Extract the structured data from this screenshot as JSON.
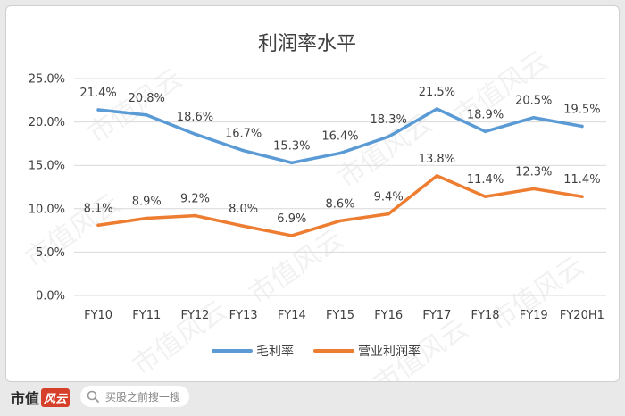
{
  "chart_data": {
    "type": "line",
    "title": "利润率水平",
    "categories": [
      "FY10",
      "FY11",
      "FY12",
      "FY13",
      "FY14",
      "FY15",
      "FY16",
      "FY17",
      "FY18",
      "FY19",
      "FY20H1"
    ],
    "y_ticks": [
      "0.0%",
      "5.0%",
      "10.0%",
      "15.0%",
      "20.0%",
      "25.0%"
    ],
    "ylim": [
      0,
      25
    ],
    "grid": true,
    "legend_position": "bottom",
    "series": [
      {
        "name": "毛利率",
        "color": "#5b9bd5",
        "values": [
          21.4,
          20.8,
          18.6,
          16.7,
          15.3,
          16.4,
          18.3,
          21.5,
          18.9,
          20.5,
          19.5
        ],
        "labels": [
          "21.4%",
          "20.8%",
          "18.6%",
          "16.7%",
          "15.3%",
          "16.4%",
          "18.3%",
          "21.5%",
          "18.9%",
          "20.5%",
          "19.5%"
        ]
      },
      {
        "name": "营业利润率",
        "color": "#ed7d31",
        "values": [
          8.1,
          8.9,
          9.2,
          8.0,
          6.9,
          8.6,
          9.4,
          13.8,
          11.4,
          12.3,
          11.4
        ],
        "labels": [
          "8.1%",
          "8.9%",
          "9.2%",
          "8.0%",
          "6.9%",
          "8.6%",
          "9.4%",
          "13.8%",
          "11.4%",
          "12.3%",
          "11.4%"
        ]
      }
    ]
  },
  "watermark": "市值风云",
  "footer": {
    "brand": "市值",
    "brand_mark": "风云",
    "search_text": "买股之前搜一搜"
  }
}
